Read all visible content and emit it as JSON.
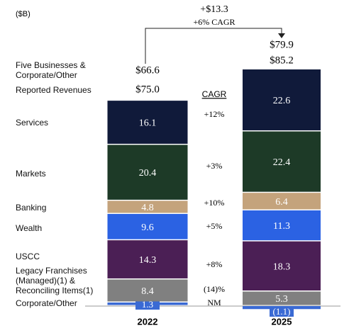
{
  "chart_data": {
    "type": "bar",
    "stacked": true,
    "unit": "($B)",
    "categories": [
      "2022",
      "2025"
    ],
    "annotation": [
      "+$13.3",
      "+6% CAGR"
    ],
    "cagr_title": "CAGR",
    "totals": [
      {
        "label": "Five Businesses & Corporate/Other",
        "values": [
          "$66.6",
          "$79.9"
        ]
      },
      {
        "label": "Reported Revenues",
        "values": [
          "$75.0",
          "$85.2"
        ]
      }
    ],
    "series": [
      {
        "name": "Corporate/Other",
        "color": "#3a6ad4",
        "values": [
          1.3,
          -1.1
        ],
        "value_labels": [
          "1.3",
          "(1.1)"
        ],
        "cagr": "NM"
      },
      {
        "name": "Legacy Franchises (Managed)(1) & Reconciling Items(1)",
        "color": "#808080",
        "values": [
          8.4,
          5.3
        ],
        "cagr": "(14)%"
      },
      {
        "name": "USCC",
        "color": "#4b1f55",
        "values": [
          14.3,
          18.3
        ],
        "cagr": "+8%"
      },
      {
        "name": "Wealth",
        "color": "#2b62e3",
        "values": [
          9.6,
          11.3
        ],
        "cagr": "+5%"
      },
      {
        "name": "Banking",
        "color": "#c4a37c",
        "values": [
          4.8,
          6.4
        ],
        "cagr": "+10%"
      },
      {
        "name": "Markets",
        "color": "#1d3a27",
        "values": [
          20.4,
          22.4
        ],
        "cagr": "+3%"
      },
      {
        "name": "Services",
        "color": "#101a3a",
        "values": [
          16.1,
          22.6
        ],
        "cagr": "+12%"
      }
    ]
  }
}
